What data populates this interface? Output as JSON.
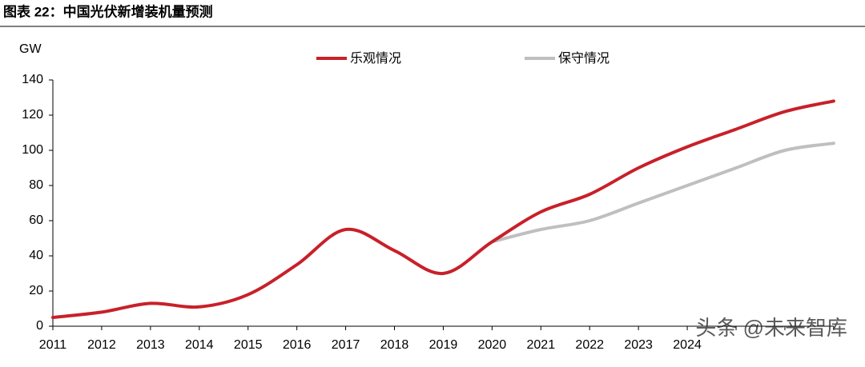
{
  "chart_data": {
    "type": "line",
    "title": "图表 22：中国光伏新增装机量预测",
    "y_label": "GW",
    "categories": [
      "2011",
      "2012",
      "2013",
      "2014",
      "2015",
      "2016",
      "2017",
      "2018",
      "2019",
      "2020",
      "2021",
      "2022",
      "2023",
      "2024",
      null,
      null,
      null
    ],
    "series": [
      {
        "name": "乐观情况",
        "color": "#c8202a",
        "values": [
          5,
          8,
          13,
          11,
          18,
          35,
          55,
          43,
          30,
          48,
          65,
          75,
          90,
          102,
          112,
          122,
          128
        ]
      },
      {
        "name": "保守情况",
        "color": "#bfbfbf",
        "values": [
          null,
          null,
          null,
          null,
          null,
          null,
          null,
          null,
          null,
          48,
          55,
          60,
          70,
          80,
          90,
          100,
          104
        ]
      }
    ],
    "ylim": [
      0,
      140
    ],
    "yticks": [
      0,
      20,
      40,
      60,
      80,
      100,
      120,
      140
    ],
    "legend": "top",
    "watermark": "头条 @未来智库"
  }
}
